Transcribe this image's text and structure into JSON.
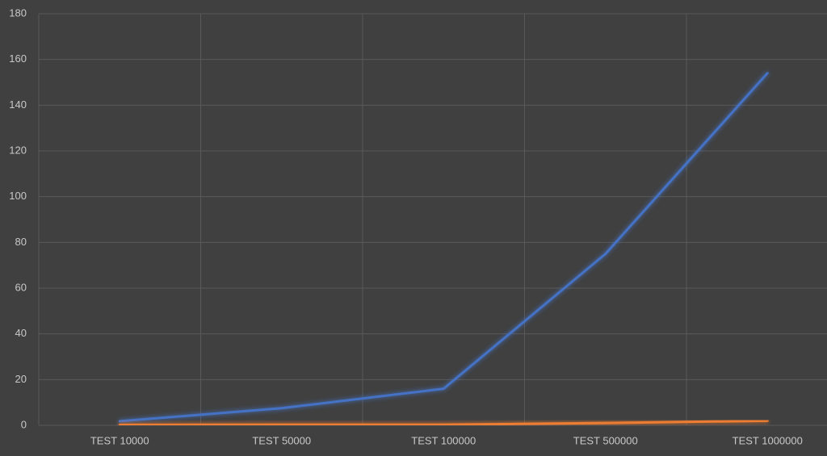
{
  "chart_data": {
    "type": "line",
    "categories": [
      "TEST 10000",
      "TEST 50000",
      "TEST 100000",
      "TEST 500000",
      "TEST 1000000"
    ],
    "series": [
      {
        "color": "#4472c4",
        "values": [
          1.8,
          7.5,
          16,
          75,
          154
        ]
      },
      {
        "color": "#ed7d31",
        "values": [
          0.2,
          0.3,
          0.3,
          1,
          2
        ]
      }
    ],
    "ylim": [
      0,
      180
    ],
    "yticks": [
      0,
      20,
      40,
      60,
      80,
      100,
      120,
      140,
      160,
      180
    ],
    "grid": true
  }
}
